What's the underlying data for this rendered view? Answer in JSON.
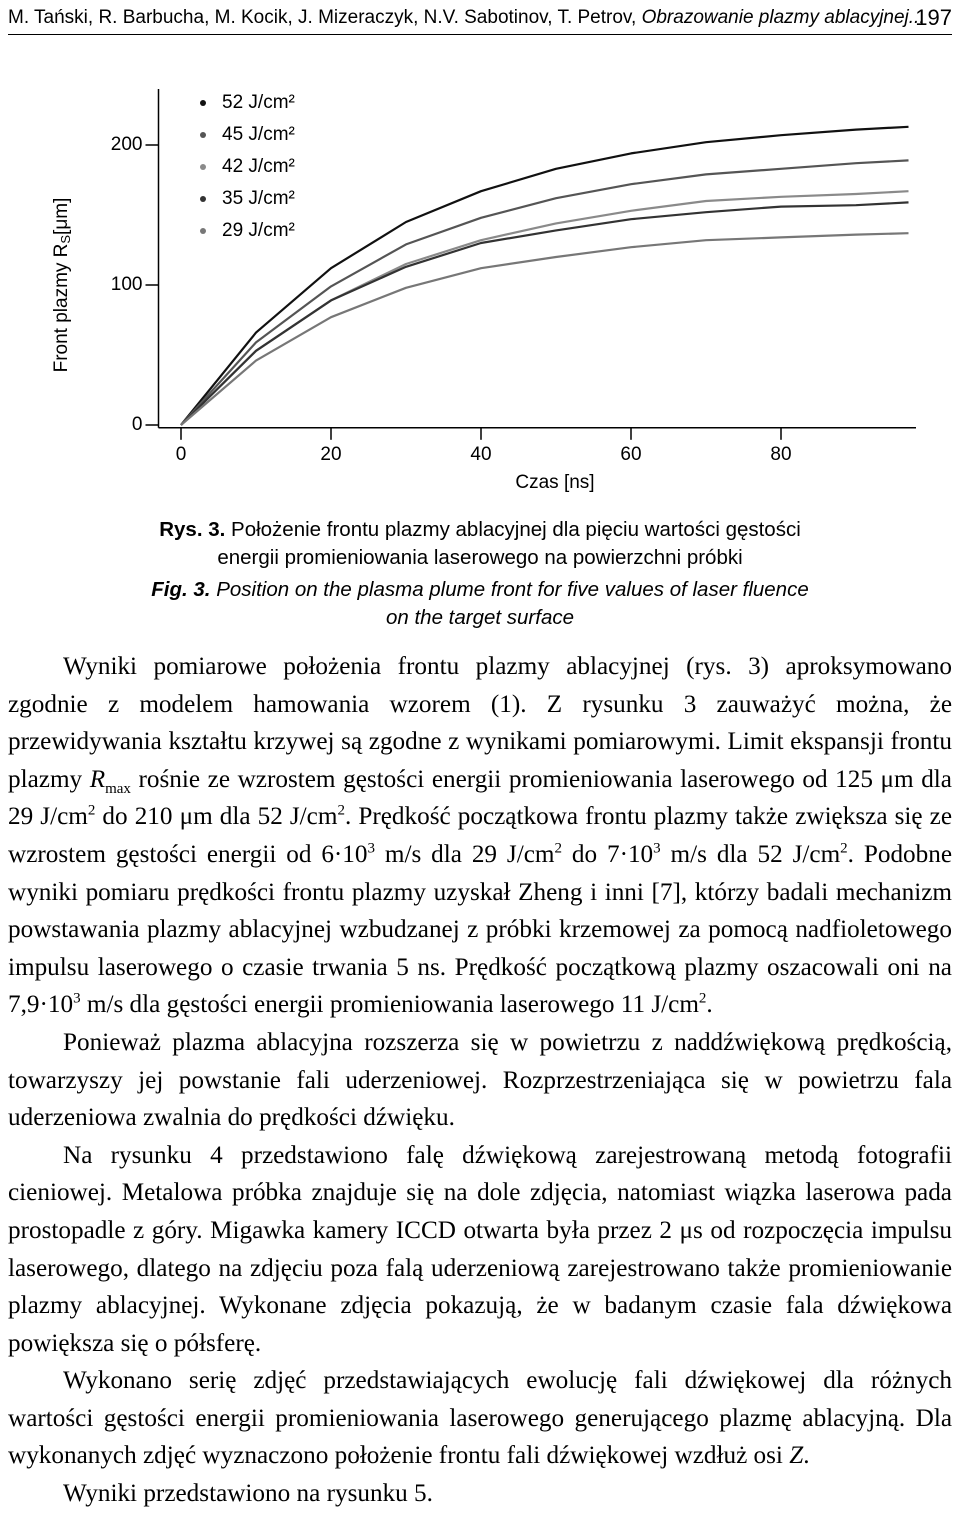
{
  "header": {
    "authors": "M. Tański, R. Barbucha, M. Kocik, J. Mizeraczyk, N.V. Sabotinov, T. Petrov, ",
    "title": "Obrazowanie plazmy ablacyjnej...",
    "page": "197"
  },
  "chart_data": {
    "type": "line",
    "x_label": "Czas [ns]",
    "y_label": "Front plazmy R",
    "y_label_sub": "S",
    "y_label_unit": "[μm]",
    "x": [
      0,
      10,
      20,
      30,
      40,
      50,
      60,
      70,
      80,
      90,
      97
    ],
    "series": [
      {
        "name": "52 J/cm²",
        "color": "#111111",
        "values": [
          0,
          66,
          112,
          145,
          167,
          183,
          194,
          202,
          207,
          211,
          213
        ]
      },
      {
        "name": "45 J/cm²",
        "color": "#555555",
        "values": [
          0,
          59,
          99,
          129,
          148,
          162,
          172,
          179,
          183,
          187,
          189
        ]
      },
      {
        "name": "42 J/cm²",
        "color": "#8a8a8a",
        "values": [
          0,
          53,
          89,
          115,
          132,
          144,
          153,
          160,
          163,
          165,
          167
        ]
      },
      {
        "name": "35 J/cm²",
        "color": "#333333",
        "values": [
          0,
          53,
          89,
          113,
          130,
          139,
          147,
          152,
          156,
          157,
          159
        ]
      },
      {
        "name": "29 J/cm²",
        "color": "#777777",
        "values": [
          0,
          46,
          77,
          98,
          112,
          120,
          127,
          132,
          134,
          136,
          137
        ]
      }
    ],
    "xlim": [
      -3,
      98
    ],
    "xticks": [
      0,
      20,
      40,
      60,
      80
    ],
    "ylim": [
      -2,
      240
    ],
    "yticks": [
      0,
      100,
      200
    ],
    "legend": "upper left"
  },
  "caption_pl": {
    "label": "Rys. 3.",
    "text": "Położenie frontu plazmy ablacyjnej dla pięciu wartości gęstości energii promieniowania laserowego na powierzchni próbki"
  },
  "caption_en": {
    "label": "Fig. 3.",
    "text": "Position on the plasma plume front for five values of laser fluence on the target surface"
  },
  "paragraphs": [
    [
      {
        "text": "Wyniki pomiarowe położenia frontu plazmy ablacyjnej (rys. 3) aproksymowano zgodnie z modelem hamowania wzorem (1). Z rysunku 3 zauważyć można, że przewidywania kształtu krzywej są zgodne z wynikami pomiarowymi. Limit ekspansji frontu plazmy "
      },
      {
        "italic": "R"
      },
      {
        "sub": "max"
      },
      {
        "text": " rośnie ze wzrostem gęstości energii promieniowania laserowego od 125 μm dla 29 J/cm"
      },
      {
        "sup": "2"
      },
      {
        "text": " do 210 μm dla 52 J/cm"
      },
      {
        "sup": "2"
      },
      {
        "text": ". Prędkość początkowa frontu plazmy także zwiększa się ze wzrostem gęstości energii od 6·10"
      },
      {
        "sup": "3"
      },
      {
        "text": " m/s dla 29 J/cm"
      },
      {
        "sup": "2"
      },
      {
        "text": " do 7·10"
      },
      {
        "sup": "3"
      },
      {
        "text": " m/s dla 52 J/cm"
      },
      {
        "sup": "2"
      },
      {
        "text": ". Podobne wyniki pomiaru prędkości frontu plazmy uzyskał Zheng i inni [7], którzy badali mechanizm powstawania plazmy ablacyjnej wzbudzanej z próbki krzemowej za pomocą nadfioletowego impulsu laserowego o czasie trwania 5 ns. Prędkość początkową plazmy oszacowali oni na 7,9·10"
      },
      {
        "sup": "3"
      },
      {
        "text": " m/s dla gęstości energii promieniowania laserowego 11 J/cm"
      },
      {
        "sup": "2"
      },
      {
        "text": "."
      }
    ],
    [
      {
        "text": "Ponieważ plazma ablacyjna rozszerza się w powietrzu z naddźwiękową prędkością, towarzyszy jej powstanie fali uderzeniowej. Rozprzestrzeniająca się w powietrzu fala uderzeniowa zwalnia do prędkości dźwięku."
      }
    ],
    [
      {
        "text": "Na rysunku 4 przedstawiono falę dźwiękową zarejestrowaną metodą fotografii cieniowej. Metalowa próbka znajduje się na dole zdjęcia, natomiast wiązka laserowa pada prostopadle z góry. Migawka kamery ICCD otwarta była przez 2 μs od rozpoczęcia impulsu laserowego, dlatego na zdjęciu poza falą uderzeniową zarejestrowano także promieniowanie plazmy ablacyjnej. Wykonane zdjęcia pokazują, że w badanym czasie fala dźwiękowa powiększa się o półsferę."
      }
    ],
    [
      {
        "text": "Wykonano serię zdjęć przedstawiających ewolucję fali dźwiękowej dla różnych wartości gęstości energii promieniowania laserowego generującego plazmę ablacyjną. Dla wykonanych zdjęć wyznaczono położenie frontu fali dźwiękowej wzdłuż osi "
      },
      {
        "italic": "Z"
      },
      {
        "text": "."
      }
    ],
    [
      {
        "text": "Wyniki przedstawiono na rysunku 5."
      }
    ]
  ]
}
